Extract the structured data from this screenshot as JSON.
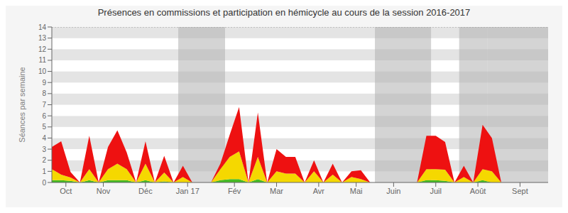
{
  "chart_data": {
    "type": "area",
    "stacked": true,
    "title": "Présences en commissions et participation en hémicycle au cours de la session 2016-2017",
    "ylabel": "Séances par semaine",
    "x": [
      0,
      1,
      2,
      3,
      4,
      5,
      6,
      7,
      8,
      9,
      10,
      11,
      12,
      13,
      14,
      15,
      16,
      17,
      18,
      19,
      20,
      21,
      22,
      23,
      24,
      25,
      26,
      27,
      28,
      29,
      30,
      31,
      32,
      33,
      34,
      35,
      36,
      37,
      38,
      39,
      40,
      41,
      42,
      43,
      44,
      45,
      46,
      47,
      48,
      49,
      50,
      51,
      52
    ],
    "series": [
      {
        "color": "#44bb22",
        "values": [
          0.2,
          0.2,
          0.15,
          0.0,
          0.2,
          0.0,
          0.2,
          0.2,
          0.2,
          0.0,
          0.2,
          0.0,
          0.1,
          0.0,
          0.0,
          0.0,
          0.0,
          0.0,
          0.2,
          0.3,
          0.3,
          0.0,
          0.3,
          0.0,
          0.0,
          0.0,
          0.0,
          0.0,
          0.0,
          0.0,
          0.0,
          0.0,
          0.0,
          0.0,
          0.0,
          0.0,
          0.0,
          0.0,
          0.0,
          0.0,
          0.2,
          0.2,
          0.15,
          0.0,
          0.0,
          0.0,
          0.2,
          0.0,
          0.0,
          0.0,
          0.0,
          0.0,
          0.0
        ]
      },
      {
        "color": "#f5d800",
        "values": [
          1.0,
          0.5,
          0.3,
          0.0,
          1.0,
          0.0,
          1.0,
          1.5,
          1.0,
          0.0,
          1.5,
          0.0,
          0.8,
          0.0,
          0.5,
          0.0,
          0.0,
          0.0,
          1.0,
          2.0,
          2.5,
          0.0,
          2.0,
          0.0,
          1.0,
          0.8,
          0.8,
          0.0,
          1.0,
          0.0,
          0.7,
          0.0,
          0.5,
          0.3,
          0.0,
          0.0,
          0.0,
          0.0,
          0.0,
          0.0,
          1.0,
          1.0,
          1.0,
          0.0,
          0.5,
          0.0,
          1.0,
          1.0,
          0.0,
          0.0,
          0.0,
          0.0,
          0.0
        ]
      },
      {
        "color": "#ee1111",
        "values": [
          2.0,
          3.0,
          0.5,
          0.0,
          3.0,
          0.0,
          2.0,
          3.0,
          1.5,
          0.0,
          2.0,
          0.0,
          1.5,
          0.0,
          1.0,
          0.0,
          0.0,
          0.0,
          0.5,
          2.0,
          4.0,
          0.0,
          4.0,
          0.0,
          2.0,
          1.5,
          1.5,
          0.0,
          1.0,
          0.0,
          1.0,
          0.0,
          0.5,
          0.8,
          0.0,
          0.0,
          0.0,
          0.0,
          0.0,
          0.0,
          3.0,
          3.0,
          2.5,
          0.0,
          1.0,
          0.0,
          4.0,
          3.0,
          0.0,
          0.0,
          0.0,
          0.0,
          0.0
        ]
      }
    ],
    "xlim": [
      0,
      53
    ],
    "xticks": [
      {
        "value": 1.5,
        "label": "Oct"
      },
      {
        "value": 5.5,
        "label": "Nov"
      },
      {
        "value": 10.0,
        "label": "Déc"
      },
      {
        "value": 14.5,
        "label": "Jan 17"
      },
      {
        "value": 19.5,
        "label": "Fév"
      },
      {
        "value": 24.0,
        "label": "Mar"
      },
      {
        "value": 28.5,
        "label": "Avr"
      },
      {
        "value": 32.5,
        "label": "Mai"
      },
      {
        "value": 36.5,
        "label": "Juin"
      },
      {
        "value": 41.0,
        "label": "Juil"
      },
      {
        "value": 45.5,
        "label": "Août"
      },
      {
        "value": 50.0,
        "label": "Sept"
      }
    ],
    "ylim": [
      0,
      14
    ],
    "yticks": [
      0,
      1,
      2,
      3,
      4,
      5,
      6,
      7,
      8,
      9,
      10,
      11,
      12,
      13,
      14
    ],
    "shade_bands": [
      [
        13.5,
        18.5
      ],
      [
        34.5,
        40.5
      ],
      [
        43.5,
        46.5
      ],
      [
        46.5,
        53.0
      ]
    ],
    "reference_lines": [
      14
    ]
  }
}
